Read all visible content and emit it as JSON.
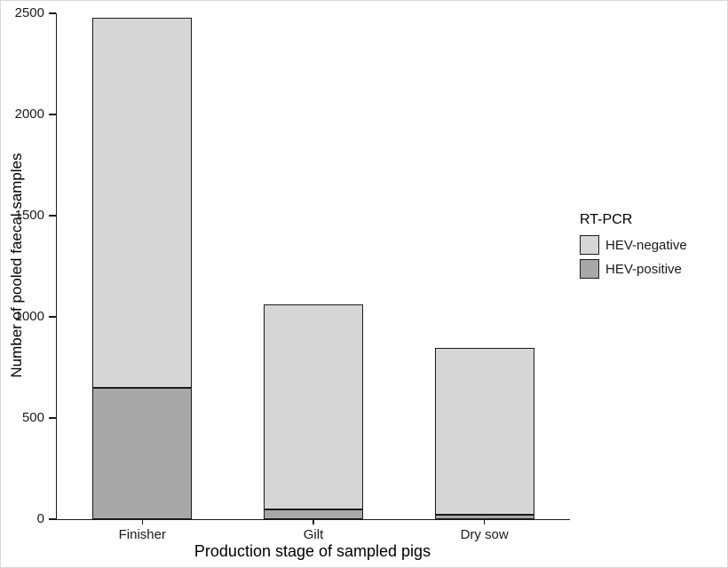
{
  "chart_data": {
    "type": "bar",
    "stacked": true,
    "title": "",
    "xlabel": "Production stage of sampled pigs",
    "ylabel": "Number of pooled faecal samples",
    "categories": [
      "Finisher",
      "Gilt",
      "Dry sow"
    ],
    "series": [
      {
        "name": "HEV-positive",
        "color": "#a8a8a8",
        "values": [
          650,
          50,
          20
        ]
      },
      {
        "name": "HEV-negative",
        "color": "#d6d6d6",
        "values": [
          1830,
          1010,
          825
        ]
      }
    ],
    "totals": [
      2480,
      1060,
      845
    ],
    "ylim": [
      0,
      2500
    ],
    "yticks": [
      0,
      500,
      1000,
      1500,
      2000,
      2500
    ],
    "grid": false,
    "legend_position": "right",
    "legend_title": "RT-PCR"
  },
  "legend": {
    "title": "RT-PCR",
    "items": [
      {
        "label": "HEV-negative",
        "color": "#d6d6d6"
      },
      {
        "label": "HEV-positive",
        "color": "#a8a8a8"
      }
    ]
  }
}
